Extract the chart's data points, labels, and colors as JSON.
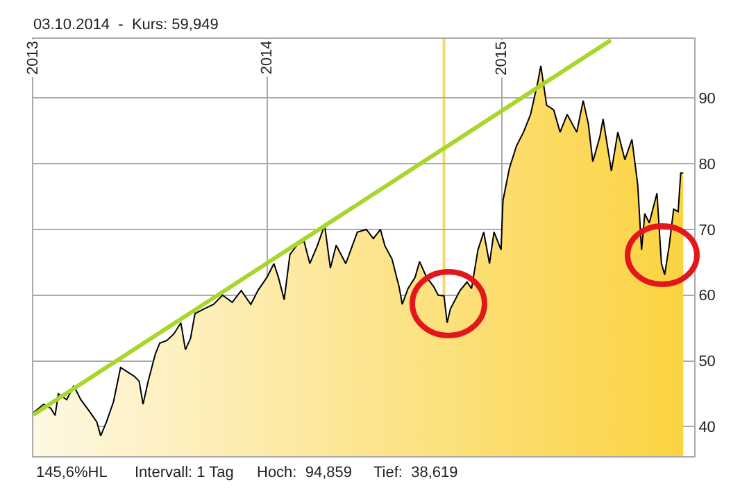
{
  "chart_data": {
    "type": "area",
    "title": "03.10.2014  -  Kurs: 59,949",
    "annotations": [
      "145,6%HL",
      "Intervall: 1 Tag",
      "Hoch:  94,859",
      "Tief:  38,619"
    ],
    "series": [
      {
        "color": "#000000",
        "x": [
          "2013-01-01",
          "2013-01-17",
          "2013-01-28",
          "2013-02-04",
          "2013-02-09",
          "2013-02-22",
          "2013-03-05",
          "2013-03-16",
          "2013-03-31",
          "2013-04-10",
          "2013-04-16",
          "2013-04-25",
          "2013-05-06",
          "2013-05-17",
          "2013-05-28",
          "2013-06-08",
          "2013-06-15",
          "2013-06-21",
          "2013-06-29",
          "2013-07-10",
          "2013-07-17",
          "2013-07-28",
          "2013-08-08",
          "2013-08-19",
          "2013-08-26",
          "2013-09-03",
          "2013-09-10",
          "2013-09-24",
          "2013-10-09",
          "2013-10-23",
          "2013-11-07",
          "2013-11-21",
          "2013-12-06",
          "2013-12-17",
          "2013-12-31",
          "2014-01-11",
          "2014-01-18",
          "2014-01-27",
          "2014-02-05",
          "2014-02-16",
          "2014-02-27",
          "2014-03-08",
          "2014-03-20",
          "2014-03-31",
          "2014-04-09",
          "2014-04-18",
          "2014-05-03",
          "2014-05-21",
          "2014-06-04",
          "2014-06-15",
          "2014-06-26",
          "2014-07-03",
          "2014-07-14",
          "2014-07-25",
          "2014-07-30",
          "2014-08-08",
          "2014-08-19",
          "2014-08-26",
          "2014-09-06",
          "2014-09-17",
          "2014-09-24",
          "2014-10-03",
          "2014-10-08",
          "2014-10-13",
          "2014-10-28",
          "2014-11-08",
          "2014-11-15",
          "2014-11-25",
          "2014-12-04",
          "2014-12-13",
          "2014-12-20",
          "2014-12-31",
          "2015-01-03",
          "2015-01-13",
          "2015-01-24",
          "2015-02-04",
          "2015-02-15",
          "2015-02-26",
          "2015-03-03",
          "2015-03-12",
          "2015-03-23",
          "2015-04-02",
          "2015-04-13",
          "2015-04-28",
          "2015-05-08",
          "2015-05-16",
          "2015-05-23",
          "2015-06-03",
          "2015-06-08",
          "2015-06-21",
          "2015-07-01",
          "2015-07-12",
          "2015-07-23",
          "2015-08-01",
          "2015-08-07",
          "2015-08-12",
          "2015-08-19",
          "2015-08-31",
          "2015-09-07",
          "2015-09-12",
          "2015-09-19",
          "2015-09-26",
          "2015-10-03",
          "2015-10-07",
          "2015-10-11"
        ],
        "values": [
          42.1,
          43.4,
          42.8,
          41.7,
          45.0,
          44.1,
          46.2,
          44.1,
          42.1,
          40.7,
          38.6,
          40.7,
          43.8,
          49.0,
          48.3,
          47.6,
          46.9,
          43.4,
          46.9,
          51.0,
          52.7,
          53.1,
          54.1,
          55.8,
          51.7,
          53.4,
          57.2,
          57.9,
          58.6,
          60.0,
          58.9,
          60.7,
          58.6,
          60.7,
          62.7,
          64.8,
          62.7,
          59.3,
          66.2,
          67.6,
          68.2,
          64.8,
          67.6,
          70.7,
          64.1,
          67.6,
          64.8,
          69.6,
          70.0,
          68.6,
          70.0,
          67.5,
          65.5,
          61.3,
          58.6,
          61.0,
          62.7,
          65.1,
          62.7,
          61.3,
          60.0,
          59.9,
          55.8,
          57.9,
          60.7,
          62.0,
          61.0,
          66.9,
          69.6,
          64.8,
          69.6,
          66.9,
          74.4,
          79.3,
          82.7,
          84.8,
          87.5,
          92.3,
          94.9,
          88.9,
          88.2,
          84.8,
          87.5,
          84.8,
          89.6,
          86.1,
          80.3,
          84.1,
          86.8,
          78.9,
          84.8,
          80.6,
          83.7,
          76.8,
          66.9,
          72.4,
          71.0,
          75.5,
          64.8,
          63.1,
          67.5,
          73.1,
          72.7,
          78.6,
          78.6
        ]
      },
      {
        "type": "line",
        "color": "#a8d62b",
        "x": [
          "2013-01-01",
          "2015-06-20"
        ],
        "values": [
          41.8,
          98.8
        ]
      }
    ],
    "xlim": [
      "2013-01-01",
      "2015-10-28"
    ],
    "xticks": [
      {
        "value": "2013-01-01",
        "label": "2013"
      },
      {
        "value": "2014-01-01",
        "label": "2014"
      },
      {
        "value": "2015-01-01",
        "label": "2015"
      }
    ],
    "ylim": [
      35.5,
      99
    ],
    "yticks": [
      40,
      50,
      60,
      70,
      80,
      90
    ],
    "grid": true,
    "ref_lines": [
      {
        "axis": "x",
        "value": "2014-10-03",
        "label": null,
        "color": "#f7d66a"
      }
    ]
  }
}
